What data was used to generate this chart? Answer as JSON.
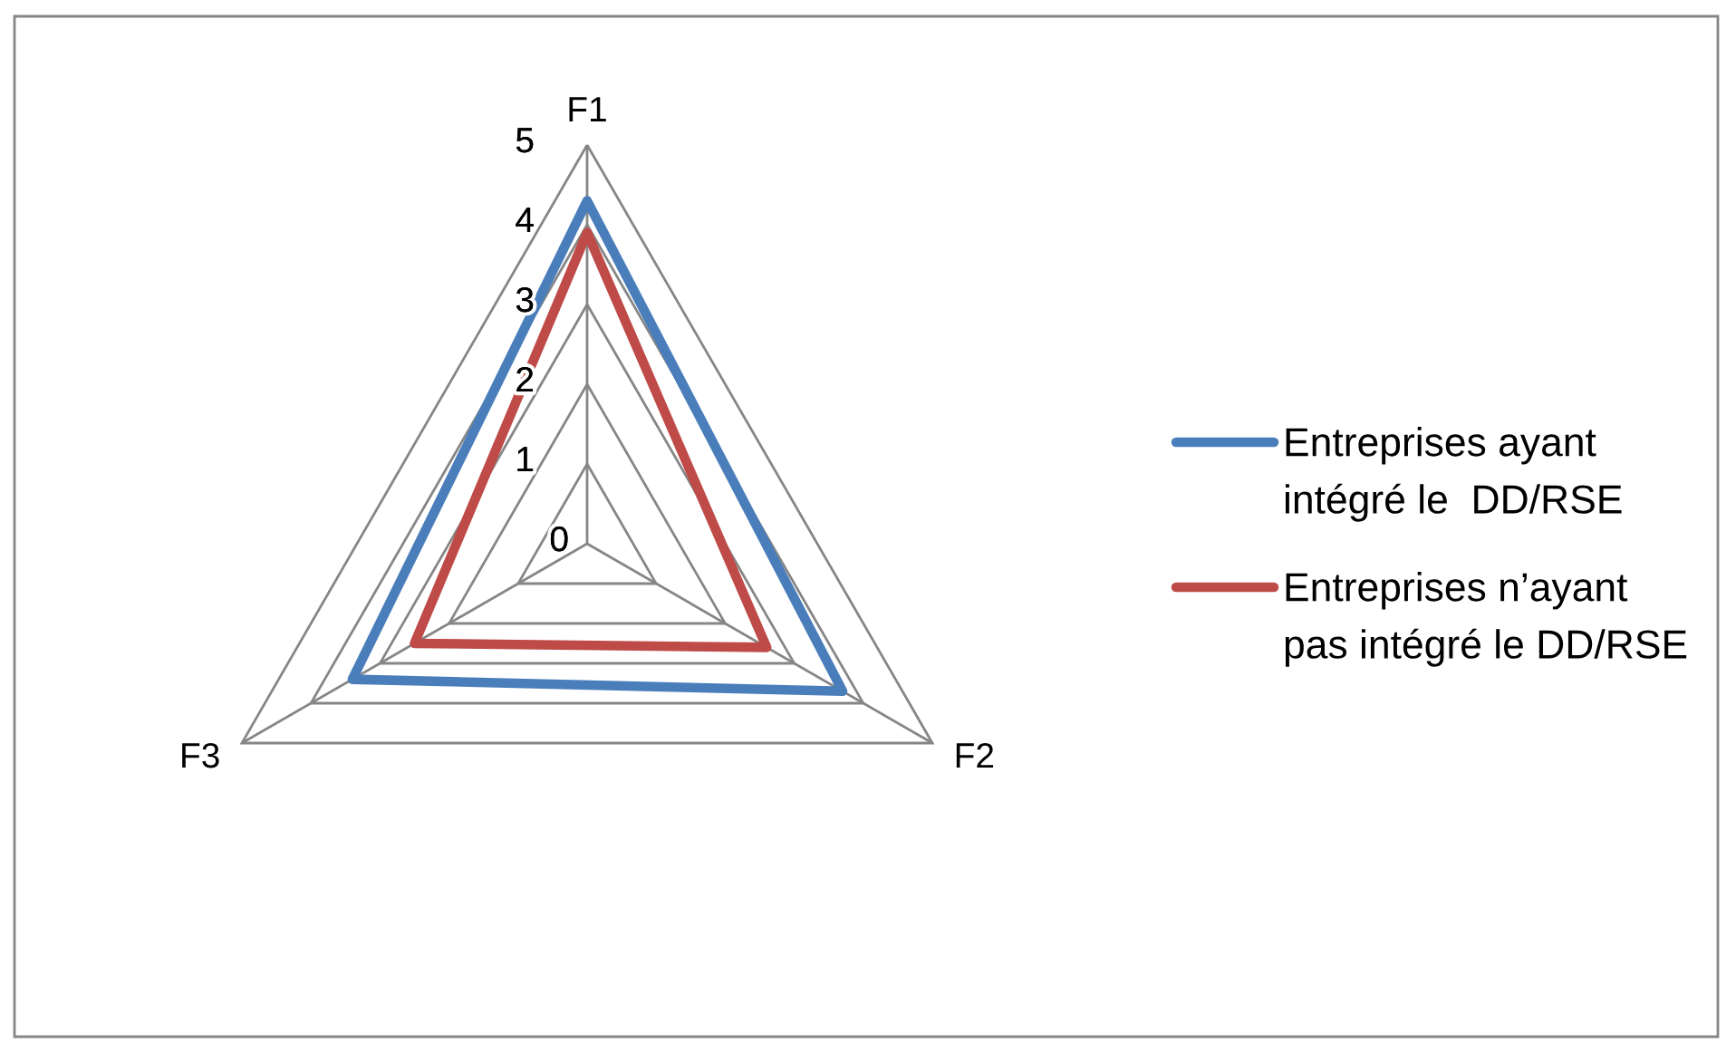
{
  "chart_data": {
    "type": "radar",
    "categories": [
      "F1",
      "F2",
      "F3"
    ],
    "series": [
      {
        "name": "Entreprises ayant intégré le  DD/RSE",
        "color": "#4a7ebb",
        "values": [
          4.3,
          3.7,
          3.4
        ]
      },
      {
        "name": "Entreprises n’ayant pas intégré le DD/RSE",
        "color": "#be4b48",
        "values": [
          3.9,
          2.6,
          2.5
        ]
      }
    ],
    "ylim": [
      0,
      5
    ],
    "yticks": [
      0,
      1,
      2,
      3,
      4,
      5
    ],
    "grid": true,
    "legend": "right"
  }
}
